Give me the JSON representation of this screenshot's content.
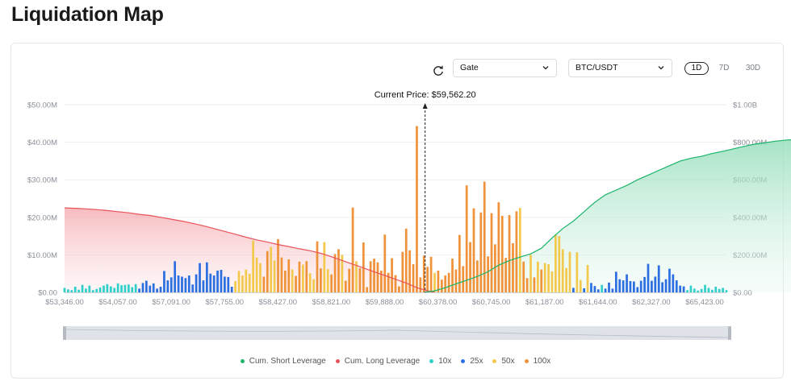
{
  "page": {
    "title": "Liquidation Map"
  },
  "controls": {
    "exchange": "Gate",
    "pair": "BTC/USDT",
    "timeframes": [
      "1D",
      "7D",
      "30D"
    ],
    "active_timeframe": "1D"
  },
  "chart_data": {
    "type": "bar",
    "title": "",
    "current_price_label": "Current Price: $59,562.20",
    "current_price": 59562.2,
    "x_tick_labels": [
      "$53,346.00",
      "$54,057.00",
      "$57,091.00",
      "$57,755.00",
      "$58,427.00",
      "$58,821.00",
      "$59,888.00",
      "$60,378.00",
      "$60,745.00",
      "$61,187.00",
      "$61,644.00",
      "$62,327.00",
      "$65,423.00"
    ],
    "y_left": {
      "ticks": [
        "$0.00",
        "$10.00M",
        "$20.00M",
        "$30.00M",
        "$40.00M",
        "$50.00M"
      ],
      "range": [
        0,
        50
      ]
    },
    "y_right": {
      "ticks": [
        "$0.00",
        "$200.00M",
        "$400.00M",
        "$600.00M",
        "$800.00M",
        "$1.00B"
      ],
      "range": [
        0,
        1000
      ]
    },
    "leverage_order": [
      "10x",
      "25x",
      "50x",
      "100x"
    ],
    "colors": {
      "10x": "#2fd0c9",
      "25x": "#2b6fe0",
      "50x": "#f2c94c",
      "100x": "#f0923a",
      "cum_short": "#1cb36b",
      "cum_long": "#e8525a"
    },
    "bars": [
      {
        "l": "10x",
        "v": 1.2
      },
      {
        "l": "10x",
        "v": 0.8
      },
      {
        "l": "10x",
        "v": 0.6
      },
      {
        "l": "10x",
        "v": 1.5
      },
      {
        "l": "10x",
        "v": 0.7
      },
      {
        "l": "10x",
        "v": 2.0
      },
      {
        "l": "10x",
        "v": 1.0
      },
      {
        "l": "10x",
        "v": 1.8
      },
      {
        "l": "10x",
        "v": 0.6
      },
      {
        "l": "10x",
        "v": 0.9
      },
      {
        "l": "10x",
        "v": 1.3
      },
      {
        "l": "10x",
        "v": 1.8
      },
      {
        "l": "10x",
        "v": 2.2
      },
      {
        "l": "10x",
        "v": 1.6
      },
      {
        "l": "10x",
        "v": 1.2
      },
      {
        "l": "10x",
        "v": 2.4
      },
      {
        "l": "10x",
        "v": 1.9
      },
      {
        "l": "10x",
        "v": 2.0
      },
      {
        "l": "10x",
        "v": 2.1
      },
      {
        "l": "10x",
        "v": 1.4
      },
      {
        "l": "10x",
        "v": 2.2
      },
      {
        "l": "25x",
        "v": 1.0
      },
      {
        "l": "25x",
        "v": 2.5
      },
      {
        "l": "25x",
        "v": 3.1
      },
      {
        "l": "25x",
        "v": 1.8
      },
      {
        "l": "25x",
        "v": 2.4
      },
      {
        "l": "25x",
        "v": 1.0
      },
      {
        "l": "25x",
        "v": 1.5
      },
      {
        "l": "25x",
        "v": 5.7
      },
      {
        "l": "25x",
        "v": 3.2
      },
      {
        "l": "25x",
        "v": 4.0
      },
      {
        "l": "25x",
        "v": 8.3
      },
      {
        "l": "25x",
        "v": 4.5
      },
      {
        "l": "25x",
        "v": 4.2
      },
      {
        "l": "25x",
        "v": 3.8
      },
      {
        "l": "25x",
        "v": 4.5
      },
      {
        "l": "25x",
        "v": 2.1
      },
      {
        "l": "25x",
        "v": 4.8
      },
      {
        "l": "25x",
        "v": 7.8
      },
      {
        "l": "25x",
        "v": 3.2
      },
      {
        "l": "25x",
        "v": 8.0
      },
      {
        "l": "25x",
        "v": 5.0
      },
      {
        "l": "25x",
        "v": 4.5
      },
      {
        "l": "25x",
        "v": 5.8
      },
      {
        "l": "25x",
        "v": 6.0
      },
      {
        "l": "25x",
        "v": 4.2
      },
      {
        "l": "25x",
        "v": 4.1
      },
      {
        "l": "25x",
        "v": 1.5
      },
      {
        "l": "50x",
        "v": 3.0
      },
      {
        "l": "50x",
        "v": 5.7
      },
      {
        "l": "50x",
        "v": 4.5
      },
      {
        "l": "50x",
        "v": 6.1
      },
      {
        "l": "50x",
        "v": 5.0
      },
      {
        "l": "50x",
        "v": 13.8
      },
      {
        "l": "50x",
        "v": 9.3
      },
      {
        "l": "50x",
        "v": 7.8
      },
      {
        "l": "100x",
        "v": 4.2
      },
      {
        "l": "100x",
        "v": 11.0
      },
      {
        "l": "50x",
        "v": 12.1
      },
      {
        "l": "50x",
        "v": 8.5
      },
      {
        "l": "100x",
        "v": 14.2
      },
      {
        "l": "100x",
        "v": 9.3
      },
      {
        "l": "100x",
        "v": 5.8
      },
      {
        "l": "100x",
        "v": 8.8
      },
      {
        "l": "50x",
        "v": 6.1
      },
      {
        "l": "100x",
        "v": 4.4
      },
      {
        "l": "100x",
        "v": 8.2
      },
      {
        "l": "50x",
        "v": 7.4
      },
      {
        "l": "100x",
        "v": 8.3
      },
      {
        "l": "50x",
        "v": 5.1
      },
      {
        "l": "50x",
        "v": 3.5
      },
      {
        "l": "100x",
        "v": 13.6
      },
      {
        "l": "100x",
        "v": 6.4
      },
      {
        "l": "50x",
        "v": 13.4
      },
      {
        "l": "50x",
        "v": 6.2
      },
      {
        "l": "100x",
        "v": 4.8
      },
      {
        "l": "100x",
        "v": 10.2
      },
      {
        "l": "100x",
        "v": 11.5
      },
      {
        "l": "50x",
        "v": 10.0
      },
      {
        "l": "100x",
        "v": 3.1
      },
      {
        "l": "100x",
        "v": 6.3
      },
      {
        "l": "100x",
        "v": 22.6
      },
      {
        "l": "50x",
        "v": 8.3
      },
      {
        "l": "100x",
        "v": 6.4
      },
      {
        "l": "100x",
        "v": 13.3
      },
      {
        "l": "100x",
        "v": 1.4
      },
      {
        "l": "100x",
        "v": 8.3
      },
      {
        "l": "100x",
        "v": 9.0
      },
      {
        "l": "100x",
        "v": 8.0
      },
      {
        "l": "100x",
        "v": 5.8
      },
      {
        "l": "100x",
        "v": 15.4
      },
      {
        "l": "100x",
        "v": 5.2
      },
      {
        "l": "100x",
        "v": 9.1
      },
      {
        "l": "100x",
        "v": 4.6
      },
      {
        "l": "100x",
        "v": 1.6
      },
      {
        "l": "100x",
        "v": 10.8
      },
      {
        "l": "100x",
        "v": 17.0
      },
      {
        "l": "100x",
        "v": 11.2
      },
      {
        "l": "100x",
        "v": 7.5
      },
      {
        "l": "100x",
        "v": 44.3
      },
      {
        "l": "100x",
        "v": 4.0
      },
      {
        "l": "100x",
        "v": 9.8
      },
      {
        "l": "100x",
        "v": 6.8
      },
      {
        "l": "100x",
        "v": 9.5
      },
      {
        "l": "50x",
        "v": 5.2
      },
      {
        "l": "100x",
        "v": 5.8
      },
      {
        "l": "100x",
        "v": 3.4
      },
      {
        "l": "100x",
        "v": 4.5
      },
      {
        "l": "100x",
        "v": 5.2
      },
      {
        "l": "100x",
        "v": 9.0
      },
      {
        "l": "100x",
        "v": 6.1
      },
      {
        "l": "100x",
        "v": 15.3
      },
      {
        "l": "100x",
        "v": 7.0
      },
      {
        "l": "100x",
        "v": 28.5
      },
      {
        "l": "100x",
        "v": 13.4
      },
      {
        "l": "100x",
        "v": 22.4
      },
      {
        "l": "100x",
        "v": 8.5
      },
      {
        "l": "100x",
        "v": 21.3
      },
      {
        "l": "100x",
        "v": 29.5
      },
      {
        "l": "100x",
        "v": 9.6
      },
      {
        "l": "100x",
        "v": 21.1
      },
      {
        "l": "100x",
        "v": 12.8
      },
      {
        "l": "100x",
        "v": 24.0
      },
      {
        "l": "100x",
        "v": 20.4
      },
      {
        "l": "100x",
        "v": 9.2
      },
      {
        "l": "100x",
        "v": 20.6
      },
      {
        "l": "100x",
        "v": 13.1
      },
      {
        "l": "100x",
        "v": 21.6
      },
      {
        "l": "50x",
        "v": 22.5
      },
      {
        "l": "100x",
        "v": 8.2
      },
      {
        "l": "100x",
        "v": 3.8
      },
      {
        "l": "50x",
        "v": 10.0
      },
      {
        "l": "100x",
        "v": 4.0
      },
      {
        "l": "50x",
        "v": 8.2
      },
      {
        "l": "100x",
        "v": 6.1
      },
      {
        "l": "50x",
        "v": 7.8
      },
      {
        "l": "50x",
        "v": 7.5
      },
      {
        "l": "50x",
        "v": 5.6
      },
      {
        "l": "50x",
        "v": 15.4
      },
      {
        "l": "50x",
        "v": 15.0
      },
      {
        "l": "50x",
        "v": 11.5
      },
      {
        "l": "50x",
        "v": 6.5
      },
      {
        "l": "50x",
        "v": 10.8
      },
      {
        "l": "25x",
        "v": 1.2
      },
      {
        "l": "50x",
        "v": 10.7
      },
      {
        "l": "50x",
        "v": 3.3
      },
      {
        "l": "25x",
        "v": 1.1
      },
      {
        "l": "50x",
        "v": 7.3
      },
      {
        "l": "25x",
        "v": 2.5
      },
      {
        "l": "25x",
        "v": 1.7
      },
      {
        "l": "25x",
        "v": 0.8
      },
      {
        "l": "10x",
        "v": 2.0
      },
      {
        "l": "25x",
        "v": 1.0
      },
      {
        "l": "25x",
        "v": 2.6
      },
      {
        "l": "25x",
        "v": 1.0
      },
      {
        "l": "25x",
        "v": 5.5
      },
      {
        "l": "25x",
        "v": 3.5
      },
      {
        "l": "25x",
        "v": 3.2
      },
      {
        "l": "25x",
        "v": 4.8
      },
      {
        "l": "25x",
        "v": 3.0
      },
      {
        "l": "25x",
        "v": 2.9
      },
      {
        "l": "25x",
        "v": 1.4
      },
      {
        "l": "25x",
        "v": 3.1
      },
      {
        "l": "25x",
        "v": 4.1
      },
      {
        "l": "25x",
        "v": 7.6
      },
      {
        "l": "25x",
        "v": 3.1
      },
      {
        "l": "25x",
        "v": 4.2
      },
      {
        "l": "25x",
        "v": 7.2
      },
      {
        "l": "25x",
        "v": 2.7
      },
      {
        "l": "25x",
        "v": 3.5
      },
      {
        "l": "25x",
        "v": 6.3
      },
      {
        "l": "25x",
        "v": 4.8
      },
      {
        "l": "25x",
        "v": 3.2
      },
      {
        "l": "25x",
        "v": 1.8
      },
      {
        "l": "25x",
        "v": 1.6
      },
      {
        "l": "10x",
        "v": 0.6
      },
      {
        "l": "10x",
        "v": 1.8
      },
      {
        "l": "10x",
        "v": 1.0
      },
      {
        "l": "10x",
        "v": 0.5
      },
      {
        "l": "10x",
        "v": 0.9
      },
      {
        "l": "10x",
        "v": 2.0
      },
      {
        "l": "10x",
        "v": 1.2
      },
      {
        "l": "10x",
        "v": 0.7
      },
      {
        "l": "10x",
        "v": 1.5
      },
      {
        "l": "10x",
        "v": 0.9
      },
      {
        "l": "10x",
        "v": 1.2
      },
      {
        "l": "10x",
        "v": 0.6
      }
    ],
    "cum_long": [
      [
        0,
        450
      ],
      [
        3,
        448
      ],
      [
        6,
        445
      ],
      [
        9,
        441
      ],
      [
        12,
        436
      ],
      [
        15,
        430
      ],
      [
        18,
        424
      ],
      [
        21,
        416
      ],
      [
        24,
        410
      ],
      [
        27,
        400
      ],
      [
        30,
        390
      ],
      [
        33,
        380
      ],
      [
        36,
        368
      ],
      [
        39,
        355
      ],
      [
        42,
        340
      ],
      [
        45,
        325
      ],
      [
        48,
        310
      ],
      [
        51,
        294
      ],
      [
        54,
        280
      ],
      [
        57,
        268
      ],
      [
        60,
        255
      ],
      [
        63,
        244
      ],
      [
        66,
        232
      ],
      [
        69,
        222
      ],
      [
        72,
        208
      ],
      [
        75,
        190
      ],
      [
        78,
        170
      ],
      [
        81,
        150
      ],
      [
        84,
        130
      ],
      [
        87,
        110
      ],
      [
        90,
        90
      ],
      [
        93,
        70
      ],
      [
        96,
        50
      ],
      [
        99,
        25
      ],
      [
        102,
        8
      ],
      [
        104,
        0
      ]
    ],
    "cum_short": [
      [
        101,
        0
      ],
      [
        104,
        8
      ],
      [
        107,
        25
      ],
      [
        110,
        45
      ],
      [
        113,
        65
      ],
      [
        116,
        85
      ],
      [
        119,
        110
      ],
      [
        122,
        145
      ],
      [
        125,
        170
      ],
      [
        128,
        188
      ],
      [
        131,
        205
      ],
      [
        134,
        235
      ],
      [
        137,
        290
      ],
      [
        140,
        340
      ],
      [
        143,
        380
      ],
      [
        146,
        430
      ],
      [
        149,
        480
      ],
      [
        152,
        520
      ],
      [
        155,
        545
      ],
      [
        158,
        570
      ],
      [
        161,
        600
      ],
      [
        164,
        625
      ],
      [
        167,
        650
      ],
      [
        170,
        675
      ],
      [
        173,
        700
      ],
      [
        176,
        715
      ],
      [
        179,
        725
      ],
      [
        182,
        740
      ],
      [
        185,
        752
      ],
      [
        188,
        765
      ],
      [
        191,
        778
      ],
      [
        194,
        790
      ],
      [
        197,
        798
      ],
      [
        200,
        806
      ],
      [
        203,
        812
      ],
      [
        206,
        814
      ],
      [
        209,
        815
      ],
      [
        214,
        817
      ]
    ]
  },
  "legend": [
    {
      "label": "Cum. Short Leverage",
      "color": "#1cb36b"
    },
    {
      "label": "Cum. Long Leverage",
      "color": "#e8525a"
    },
    {
      "label": "10x",
      "color": "#2fd0c9"
    },
    {
      "label": "25x",
      "color": "#2b6fe0"
    },
    {
      "label": "50x",
      "color": "#f2c94c"
    },
    {
      "label": "100x",
      "color": "#f0923a"
    }
  ]
}
